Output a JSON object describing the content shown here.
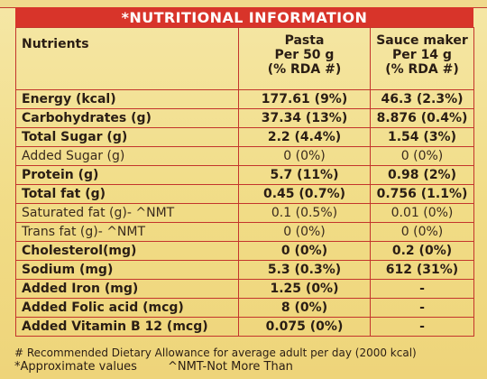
{
  "title": "*NUTRITIONAL INFORMATION",
  "table": {
    "headers": {
      "nutrients": "Nutrients",
      "pasta": [
        "Pasta",
        "Per 50 g",
        "(% RDA #)"
      ],
      "sauce": [
        "Sauce maker",
        "Per 14 g",
        "(% RDA #)"
      ]
    },
    "rows": [
      {
        "nutrient": "Energy (kcal)",
        "pasta": "177.61 (9%)",
        "sauce": "46.3 (2.3%)",
        "weight": "bold"
      },
      {
        "nutrient": "Carbohydrates (g)",
        "pasta": "37.34 (13%)",
        "sauce": "8.876 (0.4%)",
        "weight": "bold"
      },
      {
        "nutrient": "Total Sugar (g)",
        "pasta": "2.2 (4.4%)",
        "sauce": "1.54 (3%)",
        "weight": "bold"
      },
      {
        "nutrient": "Added Sugar (g)",
        "pasta": "0 (0%)",
        "sauce": "0 (0%)",
        "weight": "light"
      },
      {
        "nutrient": "Protein (g)",
        "pasta": "5.7 (11%)",
        "sauce": "0.98 (2%)",
        "weight": "bold"
      },
      {
        "nutrient": "Total fat (g)",
        "pasta": "0.45 (0.7%)",
        "sauce": "0.756 (1.1%)",
        "weight": "bold"
      },
      {
        "nutrient": "Saturated fat (g)- ^NMT",
        "pasta": "0.1 (0.5%)",
        "sauce": "0.01 (0%)",
        "weight": "light"
      },
      {
        "nutrient": "Trans fat (g)- ^NMT",
        "pasta": "0 (0%)",
        "sauce": "0 (0%)",
        "weight": "light"
      },
      {
        "nutrient": "Cholesterol(mg)",
        "pasta": "0 (0%)",
        "sauce": "0.2 (0%)",
        "weight": "bold"
      },
      {
        "nutrient": "Sodium (mg)",
        "pasta": "5.3 (0.3%)",
        "sauce": "612 (31%)",
        "weight": "bold"
      },
      {
        "nutrient": "Added Iron (mg)",
        "pasta": "1.25 (0%)",
        "sauce": "-",
        "weight": "bold"
      },
      {
        "nutrient": "Added Folic acid (mcg)",
        "pasta": "8 (0%)",
        "sauce": "-",
        "weight": "bold"
      },
      {
        "nutrient": "Added Vitamin B 12 (mcg)",
        "pasta": "0.075 (0%)",
        "sauce": "-",
        "weight": "bold"
      }
    ]
  },
  "footer": {
    "line1": "# Recommended Dietary Allowance for average adult per day (2000 kcal)",
    "approx": "*Approximate values",
    "nmt": "^NMT-Not More Than"
  },
  "colors": {
    "background": "#f2df8a",
    "title_bar": "#d8342a",
    "border": "#c3352c",
    "text": "#2a1d14"
  }
}
